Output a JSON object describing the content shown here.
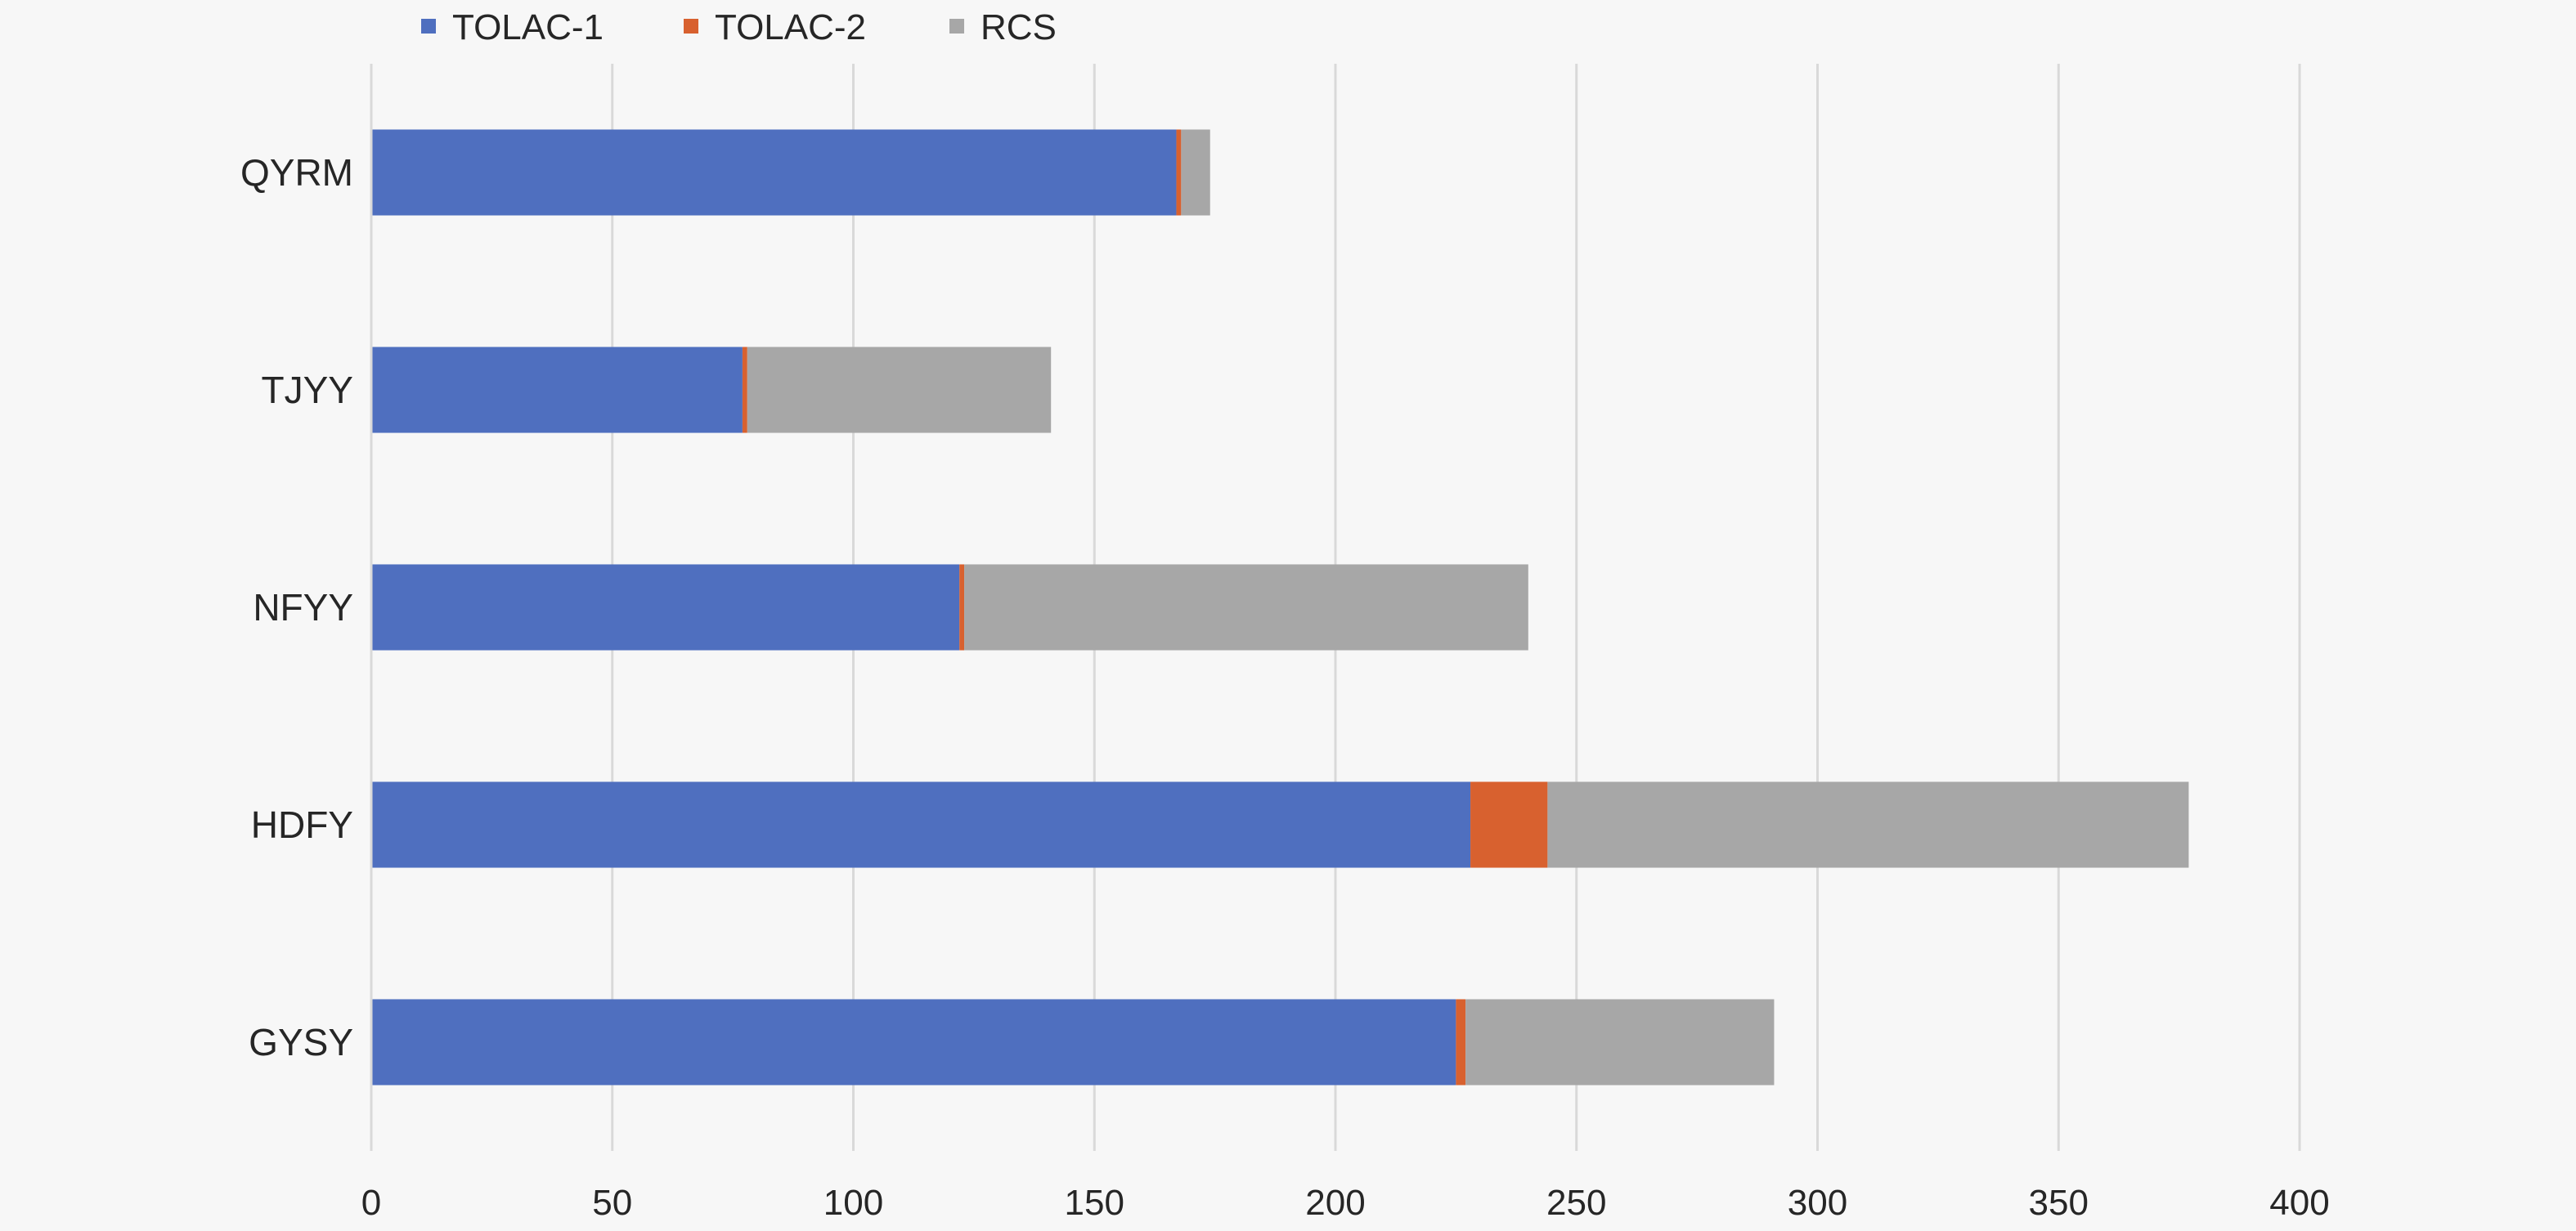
{
  "chart_data": {
    "type": "bar",
    "orientation": "horizontal",
    "stacked": true,
    "categories": [
      "GYSY",
      "HDFY",
      "NFYY",
      "TJYY",
      "QYRM"
    ],
    "series": [
      {
        "name": "TOLAC-1",
        "values": [
          225,
          228,
          122,
          77,
          167
        ],
        "color": "#4f6fbf"
      },
      {
        "name": "TOLAC-2",
        "values": [
          2,
          16,
          1,
          1,
          1
        ],
        "color": "#d8612f"
      },
      {
        "name": "RCS",
        "values": [
          64,
          133,
          117,
          63,
          6
        ],
        "color": "#a7a7a7"
      }
    ],
    "xlim": [
      0,
      400
    ],
    "xticks": [
      0,
      50,
      100,
      150,
      200,
      250,
      300,
      350,
      400
    ],
    "title": "",
    "xlabel": "",
    "ylabel": "",
    "grid": "vertical",
    "legend": "top"
  }
}
